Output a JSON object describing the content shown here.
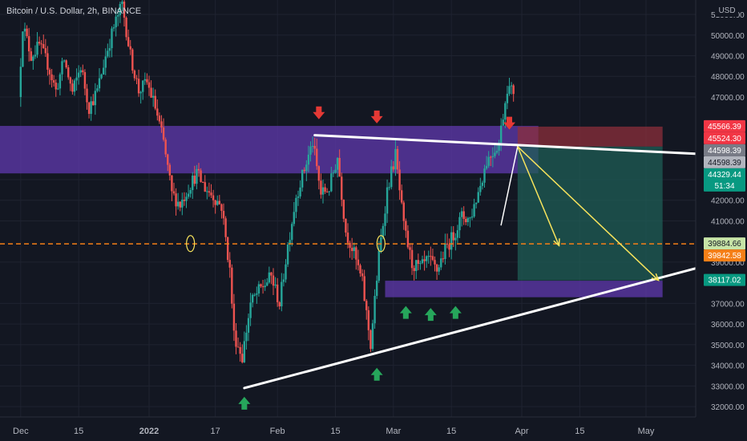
{
  "header": {
    "title": "Bitcoin / U.S. Dollar, 2h, BINANCE"
  },
  "colors": {
    "background": "#131722",
    "grid": "#1f2330",
    "up": "#26a69a",
    "down": "#ef5350",
    "zone": "#5b37a6",
    "trendline": "#ffffff",
    "projection": "#f7e35c",
    "dashed_level": "#f57f17",
    "short_target": "#1f5d55",
    "short_stop": "#8c2f3b",
    "arrow_up": "#26a65b",
    "arrow_down": "#e53935"
  },
  "chart_data": {
    "type": "candlestick",
    "title": "Bitcoin / U.S. Dollar, 2h, BINANCE",
    "y_axis": {
      "currency": "USD",
      "range": [
        31500,
        51700
      ],
      "ticks": [
        "51000.00",
        "50000.00",
        "49000.00",
        "48000.00",
        "47000.00",
        "43000.00",
        "42000.00",
        "41000.00",
        "39000.00",
        "37000.00",
        "36000.00",
        "35000.00",
        "34000.00",
        "33000.00",
        "32000.00"
      ],
      "tick_values": [
        51000,
        50000,
        49000,
        48000,
        47000,
        43000,
        42000,
        41000,
        39000,
        37000,
        36000,
        35000,
        34000,
        33000,
        32000
      ]
    },
    "x_axis": {
      "range": [
        "2021-11-26",
        "2022-05-13"
      ],
      "labels": [
        {
          "text": "Dec",
          "date": "2021-12-01"
        },
        {
          "text": "15",
          "date": "2021-12-15"
        },
        {
          "text": "2022",
          "date": "2022-01-01",
          "bold": true
        },
        {
          "text": "17",
          "date": "2022-01-17"
        },
        {
          "text": "Feb",
          "date": "2022-02-01"
        },
        {
          "text": "15",
          "date": "2022-02-15"
        },
        {
          "text": "Mar",
          "date": "2022-03-01"
        },
        {
          "text": "15",
          "date": "2022-03-15"
        },
        {
          "text": "Apr",
          "date": "2022-04-01"
        },
        {
          "text": "15",
          "date": "2022-04-15"
        },
        {
          "text": "May",
          "date": "2022-05-01"
        }
      ]
    },
    "price_path": [
      [
        "2021-12-01",
        47000
      ],
      [
        "2021-12-02",
        50500
      ],
      [
        "2021-12-04",
        49000
      ],
      [
        "2021-12-06",
        49500
      ],
      [
        "2021-12-08",
        48600
      ],
      [
        "2021-12-10",
        47300
      ],
      [
        "2021-12-12",
        48800
      ],
      [
        "2021-12-14",
        47200
      ],
      [
        "2021-12-16",
        48500
      ],
      [
        "2021-12-18",
        46500
      ],
      [
        "2021-12-20",
        47300
      ],
      [
        "2021-12-22",
        49000
      ],
      [
        "2021-12-24",
        50400
      ],
      [
        "2021-12-26",
        51500
      ],
      [
        "2021-12-28",
        49000
      ],
      [
        "2021-12-30",
        47300
      ],
      [
        "2022-01-01",
        47700
      ],
      [
        "2022-01-03",
        46500
      ],
      [
        "2022-01-05",
        44800
      ],
      [
        "2022-01-07",
        42300
      ],
      [
        "2022-01-09",
        41800
      ],
      [
        "2022-01-11",
        42600
      ],
      [
        "2022-01-13",
        43300
      ],
      [
        "2022-01-15",
        42600
      ],
      [
        "2022-01-17",
        42200
      ],
      [
        "2022-01-19",
        41700
      ],
      [
        "2022-01-21",
        38600
      ],
      [
        "2022-01-22",
        35500
      ],
      [
        "2022-01-24",
        34400
      ],
      [
        "2022-01-26",
        37000
      ],
      [
        "2022-01-28",
        37600
      ],
      [
        "2022-01-31",
        38300
      ],
      [
        "2022-02-02",
        37000
      ],
      [
        "2022-02-04",
        39800
      ],
      [
        "2022-02-06",
        42200
      ],
      [
        "2022-02-08",
        43500
      ],
      [
        "2022-02-10",
        44800
      ],
      [
        "2022-02-12",
        42300
      ],
      [
        "2022-02-14",
        42600
      ],
      [
        "2022-02-16",
        44100
      ],
      [
        "2022-02-18",
        40500
      ],
      [
        "2022-02-20",
        39400
      ],
      [
        "2022-02-22",
        38000
      ],
      [
        "2022-02-24",
        35000
      ],
      [
        "2022-02-26",
        39300
      ],
      [
        "2022-02-28",
        42500
      ],
      [
        "2022-03-02",
        44200
      ],
      [
        "2022-03-04",
        40700
      ],
      [
        "2022-03-06",
        38900
      ],
      [
        "2022-03-08",
        38700
      ],
      [
        "2022-03-10",
        39100
      ],
      [
        "2022-03-12",
        38600
      ],
      [
        "2022-03-14",
        39600
      ],
      [
        "2022-03-16",
        40300
      ],
      [
        "2022-03-18",
        41200
      ],
      [
        "2022-03-20",
        41100
      ],
      [
        "2022-03-22",
        42400
      ],
      [
        "2022-03-24",
        43900
      ],
      [
        "2022-03-27",
        44800
      ],
      [
        "2022-03-29",
        47500
      ],
      [
        "2022-03-30",
        47300
      ]
    ],
    "resistance_line": [
      [
        "2022-02-10",
        45150
      ],
      [
        "2022-05-13",
        44250
      ]
    ],
    "support_line": [
      [
        "2022-01-24",
        32900
      ],
      [
        "2022-05-13",
        38700
      ]
    ],
    "white_path_line": [
      [
        "2022-03-27",
        40800
      ],
      [
        "2022-03-31",
        44600
      ]
    ],
    "zones": [
      {
        "name": "resistance-zone",
        "from": "2021-11-26",
        "to": "2022-04-05",
        "low": 43300,
        "high": 45600
      },
      {
        "name": "support-zone",
        "from": "2022-02-27",
        "to": "2022-05-05",
        "low": 37300,
        "high": 38100
      }
    ],
    "horizontal_level": 39884.66,
    "short_position": {
      "from": "2022-03-31",
      "to": "2022-05-05",
      "entry": 44598.39,
      "stop": 45566.39,
      "target": 38117.02
    },
    "projection_arrows": [
      [
        [
          "2022-03-31",
          44600
        ],
        [
          "2022-04-10",
          39800
        ]
      ],
      [
        [
          "2022-03-31",
          44600
        ],
        [
          "2022-05-04",
          38120
        ]
      ]
    ],
    "down_arrows": [
      [
        "2022-02-11",
        46000
      ],
      [
        "2022-02-25",
        45800
      ],
      [
        "2022-03-29",
        45500
      ]
    ],
    "up_arrows": [
      [
        "2022-01-24",
        32400
      ],
      [
        "2022-02-25",
        33800
      ],
      [
        "2022-03-04",
        36800
      ],
      [
        "2022-03-10",
        36700
      ],
      [
        "2022-03-16",
        36800
      ]
    ],
    "circles": [
      [
        "2022-01-11",
        39900
      ],
      [
        "2022-02-26",
        39900
      ]
    ],
    "price_labels": [
      {
        "text": "45566.39",
        "value": 45566.39,
        "bg": "#f23645",
        "fg": "#ffffff"
      },
      {
        "text": "45524.30",
        "value": 45524.3,
        "bg": "#f23645",
        "fg": "#ffffff"
      },
      {
        "text": "44598.39",
        "value": 44598.39,
        "bg": "#787b86",
        "fg": "#ffffff"
      },
      {
        "text": "44598.39",
        "value": 44598.39,
        "bg": "#b2b5be",
        "fg": "#131722"
      },
      {
        "text": "44329.44",
        "value": 44329.44,
        "bg": "#089981",
        "fg": "#ffffff",
        "sub": "51:34"
      },
      {
        "text": "39884.66",
        "value": 39884.66,
        "bg": "#c7e4a7",
        "fg": "#131722"
      },
      {
        "text": "39842.58",
        "value": 39842.58,
        "bg": "#f57f17",
        "fg": "#ffffff"
      },
      {
        "text": "38117.02",
        "value": 38117.02,
        "bg": "#089981",
        "fg": "#ffffff"
      }
    ]
  }
}
